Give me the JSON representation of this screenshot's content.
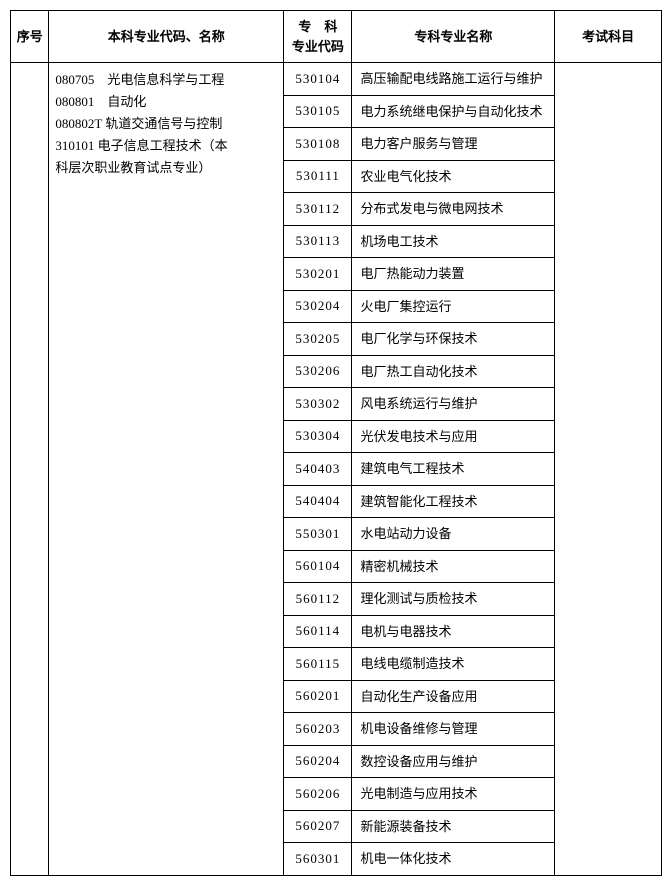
{
  "table": {
    "headers": {
      "seq": "序号",
      "bachelor": "本科专业代码、名称",
      "code": "专　科\n专业代码",
      "name": "专科专业名称",
      "exam": "考试科目"
    },
    "bachelor_lines": [
      "080705　光电信息科学与工程",
      "080801　自动化",
      "080802T 轨道交通信号与控制",
      "310101 电子信息工程技术（本",
      "科层次职业教育试点专业）"
    ],
    "rows": [
      {
        "code": "530104",
        "name": "高压输配电线路施工运行与维护"
      },
      {
        "code": "530105",
        "name": "电力系统继电保护与自动化技术"
      },
      {
        "code": "530108",
        "name": "电力客户服务与管理"
      },
      {
        "code": "530111",
        "name": "农业电气化技术"
      },
      {
        "code": "530112",
        "name": "分布式发电与微电网技术"
      },
      {
        "code": "530113",
        "name": "机场电工技术"
      },
      {
        "code": "530201",
        "name": "电厂热能动力装置"
      },
      {
        "code": "530204",
        "name": "火电厂集控运行"
      },
      {
        "code": "530205",
        "name": "电厂化学与环保技术"
      },
      {
        "code": "530206",
        "name": "电厂热工自动化技术"
      },
      {
        "code": "530302",
        "name": "风电系统运行与维护"
      },
      {
        "code": "530304",
        "name": "光伏发电技术与应用"
      },
      {
        "code": "540403",
        "name": "建筑电气工程技术"
      },
      {
        "code": "540404",
        "name": "建筑智能化工程技术"
      },
      {
        "code": "550301",
        "name": "水电站动力设备"
      },
      {
        "code": "560104",
        "name": "精密机械技术"
      },
      {
        "code": "560112",
        "name": "理化测试与质检技术"
      },
      {
        "code": "560114",
        "name": "电机与电器技术"
      },
      {
        "code": "560115",
        "name": "电线电缆制造技术"
      },
      {
        "code": "560201",
        "name": "自动化生产设备应用"
      },
      {
        "code": "560203",
        "name": "机电设备维修与管理"
      },
      {
        "code": "560204",
        "name": "数控设备应用与维护"
      },
      {
        "code": "560206",
        "name": "光电制造与应用技术"
      },
      {
        "code": "560207",
        "name": "新能源装备技术"
      },
      {
        "code": "560301",
        "name": "机电一体化技术"
      }
    ]
  }
}
